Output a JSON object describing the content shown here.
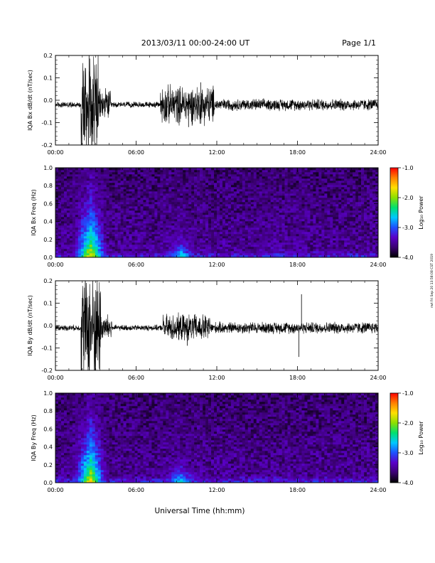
{
  "header": {
    "title": "2013/03/11  00:00-24:00 UT",
    "page": "Page 1/1"
  },
  "footer": {
    "xlabel": "Universal Time (hh:mm)",
    "stamp": "rwt Fri Sep 20 13:58:08 CST 2019"
  },
  "colorbar": {
    "label": "Log₁₀ Power",
    "ticks": [
      "-1.0",
      "-2.0",
      "-3.0",
      "-4.0"
    ],
    "range": [
      -4.0,
      -1.0
    ],
    "colors": [
      "#000000",
      "#3a0070",
      "#5a00c8",
      "#1e50ff",
      "#00c8ff",
      "#00e070",
      "#8ce000",
      "#ffe000",
      "#ff8000",
      "#ff0000"
    ]
  },
  "chart_data": [
    {
      "type": "line",
      "ylabel": "IQA Bx dB/dt (nT/sec)",
      "xlim": [
        0,
        24
      ],
      "ylim": [
        -0.2,
        0.2
      ],
      "xticks": [
        "00:00",
        "06:00",
        "12:00",
        "18:00",
        "24:00"
      ],
      "yticks": [
        "0.2",
        "0.1",
        "0.0",
        "-0.1",
        "-0.2"
      ],
      "baseline": -0.02,
      "activity": [
        {
          "start": 1.9,
          "end": 3.2,
          "amp": 0.3
        },
        {
          "start": 3.2,
          "end": 4.1,
          "amp": 0.08
        },
        {
          "start": 7.8,
          "end": 11.8,
          "amp": 0.1
        },
        {
          "start": 11.8,
          "end": 24.0,
          "amp": 0.03
        }
      ],
      "spikes": [
        {
          "x": 2.5,
          "y": 0.22
        },
        {
          "x": 2.7,
          "y": -0.22
        },
        {
          "x": 9.9,
          "y": -0.12
        },
        {
          "x": 10.8,
          "y": 0.08
        }
      ]
    },
    {
      "type": "heatmap",
      "ylabel": "IQA Bx Freq (Hz)",
      "xlim": [
        0,
        24
      ],
      "ylim": [
        0.0,
        1.0
      ],
      "xticks": [
        "00:00",
        "06:00",
        "12:00",
        "18:00",
        "24:00"
      ],
      "yticks": [
        "1.0",
        "0.8",
        "0.6",
        "0.4",
        "0.2",
        "0.0"
      ],
      "zlabel": "Log₁₀ Power",
      "zlim": [
        -4.0,
        -1.0
      ],
      "features": [
        {
          "t": 2.6,
          "width": 1.4,
          "level": -1.8
        },
        {
          "t": 9.3,
          "width": 1.6,
          "level": -2.6
        },
        {
          "t": 16.5,
          "width": 2.5,
          "level": -3.3
        }
      ]
    },
    {
      "type": "line",
      "ylabel": "IQA By dB/dt (nT/sec)",
      "xlim": [
        0,
        24
      ],
      "ylim": [
        -0.2,
        0.2
      ],
      "xticks": [
        "00:00",
        "06:00",
        "12:00",
        "18:00",
        "24:00"
      ],
      "yticks": [
        "0.2",
        "0.1",
        "0.0",
        "-0.1",
        "-0.2"
      ],
      "baseline": -0.01,
      "activity": [
        {
          "start": 1.9,
          "end": 3.4,
          "amp": 0.3
        },
        {
          "start": 3.4,
          "end": 4.2,
          "amp": 0.07
        },
        {
          "start": 8.0,
          "end": 11.5,
          "amp": 0.07
        },
        {
          "start": 11.5,
          "end": 24.0,
          "amp": 0.03
        }
      ],
      "spikes": [
        {
          "x": 18.3,
          "y": 0.14
        },
        {
          "x": 18.1,
          "y": -0.14
        },
        {
          "x": 9.8,
          "y": -0.09
        }
      ]
    },
    {
      "type": "heatmap",
      "ylabel": "IQA By Freq (Hz)",
      "xlim": [
        0,
        24
      ],
      "ylim": [
        0.0,
        1.0
      ],
      "xticks": [
        "00:00",
        "06:00",
        "12:00",
        "18:00",
        "24:00"
      ],
      "yticks": [
        "1.0",
        "0.8",
        "0.6",
        "0.4",
        "0.2",
        "0.0"
      ],
      "zlabel": "Log₁₀ Power",
      "zlim": [
        -4.0,
        -1.0
      ],
      "features": [
        {
          "t": 2.6,
          "width": 1.4,
          "level": -1.8
        },
        {
          "t": 9.3,
          "width": 1.6,
          "level": -2.6
        }
      ]
    }
  ]
}
